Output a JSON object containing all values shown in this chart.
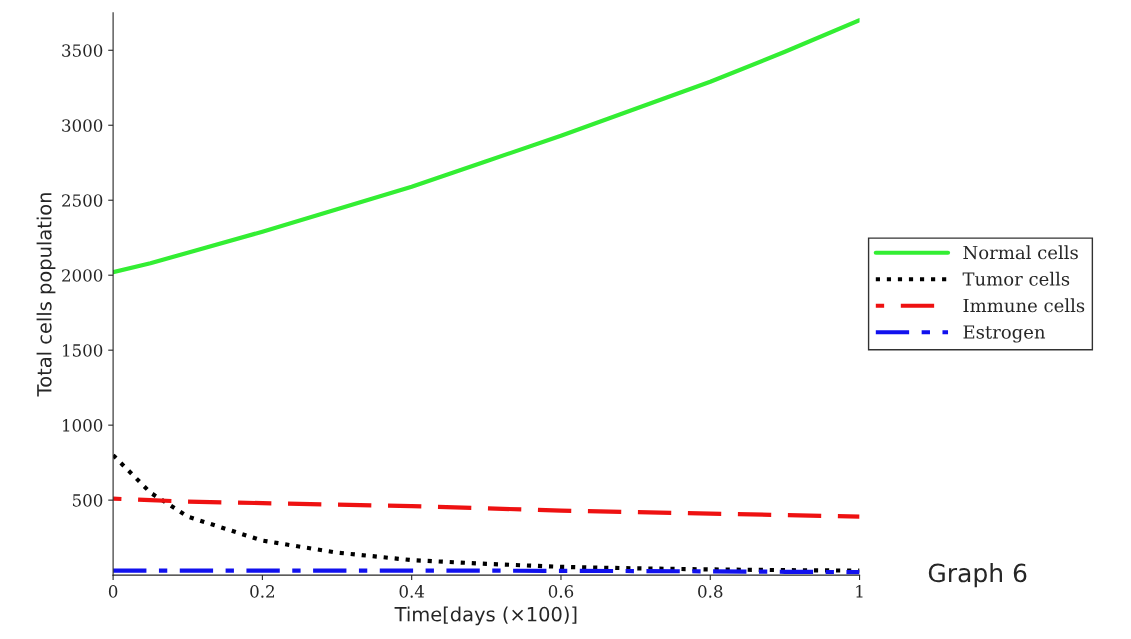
{
  "chart_data": {
    "type": "line",
    "xlabel": "Time[days (×100)]",
    "ylabel": "Total cells population",
    "x": [
      0,
      0.05,
      0.1,
      0.2,
      0.3,
      0.4,
      0.5,
      0.6,
      0.7,
      0.8,
      0.9,
      1
    ],
    "series": [
      {
        "name": "Normal cells",
        "color": "#33ee33",
        "line_style": "solid",
        "values": [
          2020,
          2080,
          2150,
          2290,
          2440,
          2590,
          2760,
          2930,
          3110,
          3290,
          3490,
          3700
        ]
      },
      {
        "name": "Tumor cells",
        "color": "#000000",
        "line_style": "dotted",
        "values": [
          800,
          550,
          390,
          230,
          150,
          100,
          75,
          55,
          45,
          38,
          33,
          30
        ]
      },
      {
        "name": "Immune cells",
        "color": "#ee1111",
        "line_style": "dashed",
        "values": [
          510,
          500,
          490,
          480,
          470,
          460,
          445,
          430,
          420,
          410,
          400,
          390
        ]
      },
      {
        "name": "Estrogen",
        "color": "#1111ee",
        "line_style": "dashdot",
        "values": [
          30,
          30,
          30,
          30,
          30,
          30,
          30,
          28,
          27,
          25,
          22,
          20
        ]
      }
    ],
    "xlim": [
      0,
      1
    ],
    "ylim": [
      0,
      3750
    ],
    "xticks": [
      0,
      0.2,
      0.4,
      0.6,
      0.8,
      1
    ],
    "yticks": [
      500,
      1000,
      1500,
      2000,
      2500,
      3000,
      3500
    ],
    "grid": false,
    "legend": "right",
    "marker": "none",
    "annotations": [
      "Graph 6"
    ]
  }
}
